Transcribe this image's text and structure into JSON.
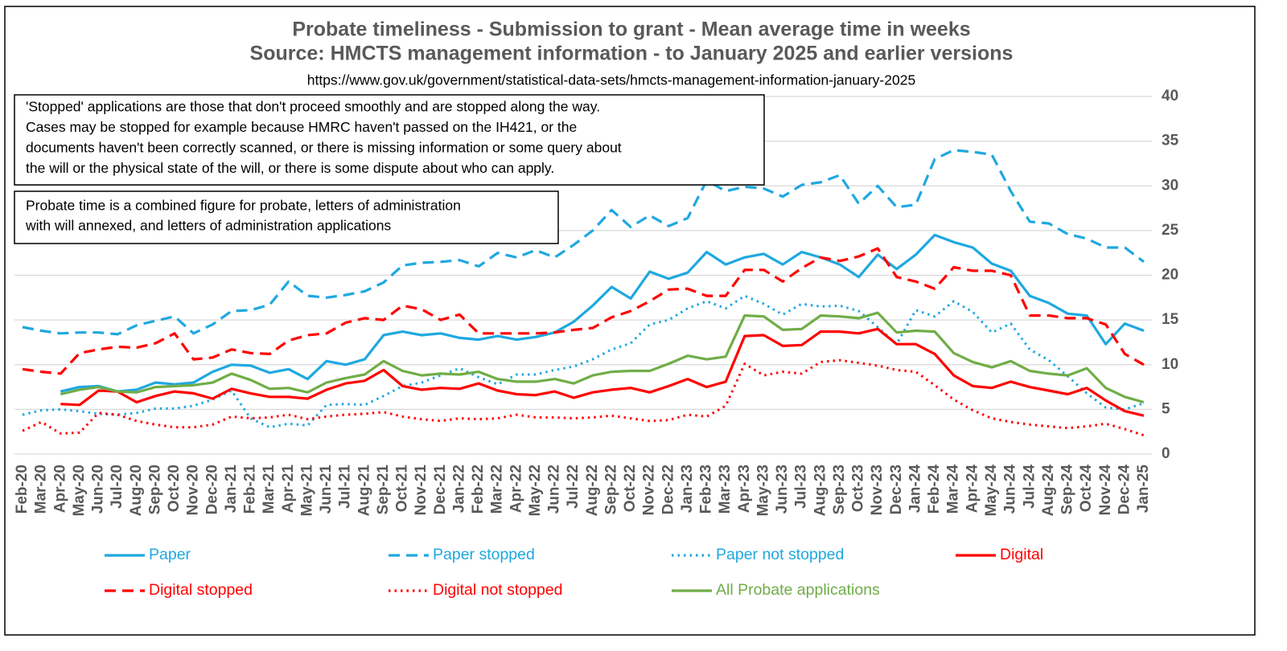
{
  "chart_data": {
    "type": "line",
    "title": "Probate timeliness - Submission to grant - Mean average time in weeks",
    "subtitle": "Source: HMCTS management information - to January 2025 and earlier versions",
    "source_url": "https://www.gov.uk/government/statistical-data-sets/hmcts-management-information-january-2025",
    "annotations": [
      {
        "lines": [
          "'Stopped' applications are those that don't proceed smoothly and are stopped along the way.",
          "Cases may be stopped for example because HMRC haven't passed on the IH421, or the",
          "documents haven't been correctly scanned, or there is missing information or some query about",
          "the will or the physical state of the will, or there is some dispute about who can apply."
        ]
      },
      {
        "lines": [
          "Probate time is a combined figure for probate, letters of administration",
          "with will annexed, and letters of administration applications"
        ]
      }
    ],
    "categories": [
      "Feb-20",
      "Mar-20",
      "Apr-20",
      "May-20",
      "Jun-20",
      "Jul-20",
      "Aug-20",
      "Sep-20",
      "Oct-20",
      "Nov-20",
      "Dec-20",
      "Jan-21",
      "Feb-21",
      "Mar-21",
      "Apr-21",
      "May-21",
      "Jun-21",
      "Jul-21",
      "Aug-21",
      "Sep-21",
      "Oct-21",
      "Nov-21",
      "Dec-21",
      "Jan-22",
      "Feb-22",
      "Mar-22",
      "Apr-22",
      "May-22",
      "Jun-22",
      "Jul-22",
      "Aug-22",
      "Sep-22",
      "Oct-22",
      "Nov-22",
      "Dec-22",
      "Jan-23",
      "Feb-23",
      "Mar-23",
      "Apr-23",
      "May-23",
      "Jun-23",
      "Jul-23",
      "Aug-23",
      "Sep-23",
      "Oct-23",
      "Nov-23",
      "Dec-23",
      "Jan-24",
      "Feb-24",
      "Mar-24",
      "Apr-24",
      "May-24",
      "Jun-24",
      "Jul-24",
      "Aug-24",
      "Sep-24",
      "Oct-24",
      "Nov-24",
      "Dec-24",
      "Jan-25"
    ],
    "series": [
      {
        "name": "Paper",
        "color": "#1fa8e0",
        "dash": "solid",
        "values": [
          null,
          null,
          7.0,
          7.5,
          7.6,
          7.0,
          7.2,
          8.0,
          7.8,
          8.0,
          9.2,
          10.0,
          9.9,
          9.1,
          9.5,
          8.4,
          10.4,
          10.0,
          10.6,
          13.3,
          13.7,
          13.3,
          13.5,
          13.0,
          12.8,
          13.2,
          12.8,
          13.1,
          13.6,
          14.8,
          16.6,
          18.7,
          17.4,
          20.4,
          19.6,
          20.3,
          22.6,
          21.2,
          22.0,
          22.4,
          21.2,
          22.6,
          22.0,
          21.2,
          19.8,
          22.3,
          20.7,
          22.3,
          24.5,
          23.7,
          23.1,
          21.3,
          20.5,
          17.7,
          16.9,
          15.7,
          15.5,
          12.3,
          14.6,
          13.8
        ]
      },
      {
        "name": "Paper stopped",
        "color": "#1fa8e0",
        "dash": "dashed",
        "values": [
          14.2,
          13.8,
          13.5,
          13.6,
          13.6,
          13.4,
          14.4,
          14.9,
          15.4,
          13.5,
          14.5,
          16.0,
          16.1,
          16.7,
          19.3,
          17.7,
          17.5,
          17.8,
          18.2,
          19.2,
          21.1,
          21.4,
          21.5,
          21.7,
          21.0,
          22.5,
          22.0,
          22.8,
          22.0,
          23.4,
          25.0,
          27.3,
          25.4,
          26.7,
          25.5,
          26.4,
          30.6,
          29.4,
          29.9,
          29.7,
          28.8,
          30.1,
          30.4,
          31.2,
          28.0,
          30.0,
          27.6,
          27.9,
          33.0,
          34.0,
          33.8,
          33.5,
          29.4,
          26.0,
          25.8,
          24.6,
          24.1,
          23.1,
          23.1,
          21.5
        ]
      },
      {
        "name": "Paper not stopped",
        "color": "#1fa8e0",
        "dash": "dotted",
        "values": [
          4.4,
          4.9,
          5.0,
          4.8,
          4.5,
          4.4,
          4.6,
          5.1,
          5.1,
          5.4,
          6.1,
          7.1,
          4.0,
          3.0,
          3.4,
          3.2,
          5.5,
          5.6,
          5.5,
          6.5,
          7.6,
          8.0,
          8.8,
          9.6,
          8.6,
          7.8,
          8.9,
          8.9,
          9.4,
          9.8,
          10.6,
          11.7,
          12.4,
          14.5,
          15.0,
          16.3,
          17.1,
          16.3,
          17.7,
          16.8,
          15.6,
          16.8,
          16.5,
          16.6,
          16.0,
          14.2,
          12.3,
          16.1,
          15.4,
          17.1,
          15.9,
          13.6,
          14.6,
          11.7,
          10.5,
          8.7,
          6.8,
          5.2,
          5.0,
          5.7
        ]
      },
      {
        "name": "Digital",
        "color": "#ff0000",
        "dash": "solid",
        "values": [
          null,
          null,
          5.6,
          5.5,
          7.1,
          7.0,
          5.8,
          6.5,
          7.0,
          6.8,
          6.2,
          7.3,
          6.8,
          6.4,
          6.4,
          6.2,
          7.2,
          7.9,
          8.2,
          9.4,
          7.6,
          7.2,
          7.4,
          7.3,
          7.9,
          7.1,
          6.7,
          6.6,
          7.0,
          6.3,
          6.9,
          7.2,
          7.4,
          6.9,
          7.6,
          8.4,
          7.5,
          8.1,
          13.2,
          13.3,
          12.1,
          12.2,
          13.7,
          13.7,
          13.5,
          14.0,
          12.3,
          12.3,
          11.2,
          8.8,
          7.6,
          7.4,
          8.1,
          7.5,
          7.1,
          6.7,
          7.4,
          6.0,
          4.8,
          4.3
        ]
      },
      {
        "name": "Digital stopped",
        "color": "#ff0000",
        "dash": "dashed",
        "values": [
          9.5,
          9.2,
          9.0,
          11.3,
          11.7,
          12.0,
          11.9,
          12.4,
          13.5,
          10.6,
          10.8,
          11.7,
          11.3,
          11.2,
          12.7,
          13.3,
          13.5,
          14.7,
          15.2,
          15.0,
          16.6,
          16.2,
          15.0,
          15.6,
          13.5,
          13.5,
          13.5,
          13.5,
          13.6,
          13.9,
          14.1,
          15.3,
          16.0,
          17.1,
          18.4,
          18.5,
          17.7,
          17.7,
          20.6,
          20.6,
          19.3,
          20.8,
          22.0,
          21.6,
          22.1,
          23.0,
          19.8,
          19.3,
          18.5,
          20.9,
          20.5,
          20.5,
          20.0,
          15.5,
          15.5,
          15.2,
          15.2,
          14.5,
          11.2,
          10.0
        ]
      },
      {
        "name": "Digital not stopped",
        "color": "#ff0000",
        "dash": "dotted",
        "values": [
          2.6,
          3.6,
          2.3,
          2.4,
          4.6,
          4.4,
          3.7,
          3.3,
          3.0,
          3.0,
          3.3,
          4.2,
          4.0,
          4.1,
          4.4,
          3.9,
          4.2,
          4.4,
          4.5,
          4.7,
          4.2,
          3.9,
          3.7,
          4.0,
          3.9,
          4.0,
          4.4,
          4.1,
          4.1,
          4.0,
          4.1,
          4.3,
          4.0,
          3.7,
          3.8,
          4.4,
          4.2,
          5.4,
          10.1,
          8.8,
          9.2,
          9.0,
          10.3,
          10.5,
          10.2,
          9.9,
          9.4,
          9.2,
          7.7,
          6.1,
          4.9,
          4.0,
          3.6,
          3.3,
          3.1,
          2.9,
          3.1,
          3.4,
          2.8,
          2.1
        ]
      },
      {
        "name": "All Probate applications",
        "color": "#70ad47",
        "dash": "solid",
        "values": [
          null,
          null,
          6.7,
          7.2,
          7.5,
          7.0,
          6.9,
          7.5,
          7.6,
          7.7,
          8.0,
          9.0,
          8.3,
          7.3,
          7.4,
          6.9,
          8.0,
          8.5,
          8.9,
          10.4,
          9.3,
          8.8,
          9.0,
          8.9,
          9.2,
          8.4,
          8.1,
          8.1,
          8.4,
          7.9,
          8.8,
          9.2,
          9.3,
          9.3,
          10.1,
          11.0,
          10.6,
          10.9,
          15.5,
          15.4,
          13.9,
          14.0,
          15.5,
          15.4,
          15.2,
          15.8,
          13.6,
          13.8,
          13.7,
          11.3,
          10.3,
          9.7,
          10.4,
          9.3,
          9.0,
          8.8,
          9.6,
          7.4,
          6.4,
          5.8
        ]
      }
    ],
    "ylim": [
      0,
      40
    ],
    "yticks": [
      0,
      5,
      10,
      15,
      20,
      25,
      30,
      35,
      40
    ],
    "y_axis_side": "right",
    "grid": true,
    "legend": "bottom"
  }
}
